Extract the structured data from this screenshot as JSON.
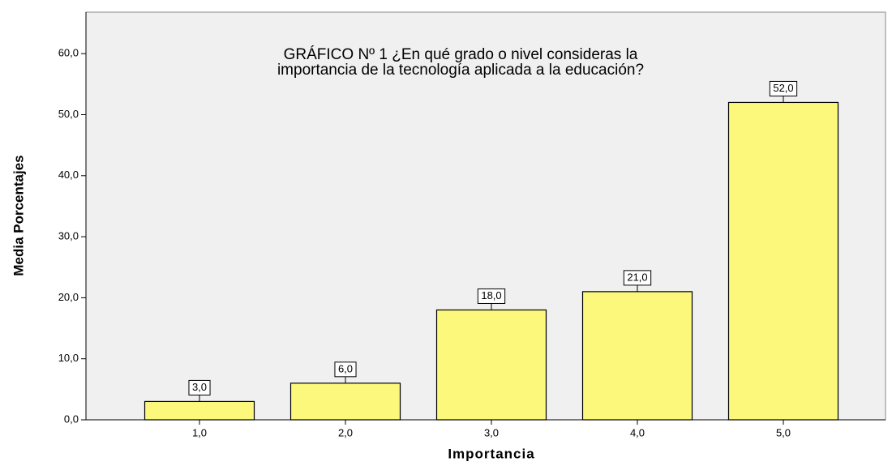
{
  "chart_data": {
    "type": "bar",
    "title": [
      "GRÁFICO Nº 1 ¿En qué grado o nivel consideras la",
      "importancia de la tecnología aplicada a la educación?"
    ],
    "x_label": "Importancia",
    "y_label": "Media Porcentajes",
    "categories": [
      "1,0",
      "2,0",
      "3,0",
      "4,0",
      "5,0"
    ],
    "values": [
      3,
      6,
      18,
      21,
      52
    ],
    "value_labels": [
      "3,0",
      "6,0",
      "18,0",
      "21,0",
      "52,0"
    ],
    "color": "#fbf87c",
    "ylim": [
      0,
      66.8
    ],
    "yticks": [
      {
        "value": 0,
        "label": "0,0"
      },
      {
        "value": 10,
        "label": "10,0"
      },
      {
        "value": 20,
        "label": "20,0"
      },
      {
        "value": 30,
        "label": "30,0"
      },
      {
        "value": 40,
        "label": "40,0"
      },
      {
        "value": 50,
        "label": "50,0"
      },
      {
        "value": 60,
        "label": "60,0"
      }
    ],
    "grid": false
  }
}
